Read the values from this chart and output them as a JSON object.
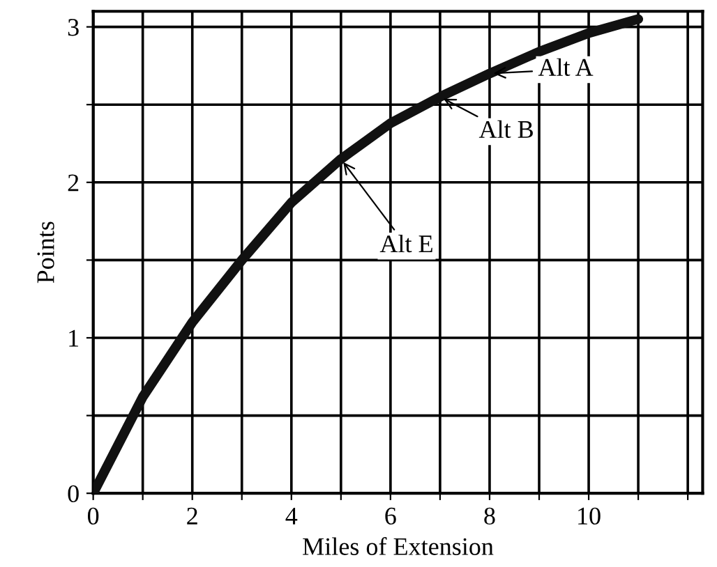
{
  "chart_data": {
    "type": "line",
    "xlabel": "Miles of Extension",
    "ylabel": "Points",
    "x": [
      0,
      1,
      2,
      3,
      4,
      5,
      6,
      7,
      8,
      9,
      10,
      11
    ],
    "series": [
      {
        "color": "#111111",
        "values": [
          0,
          0.62,
          1.1,
          1.5,
          1.87,
          2.15,
          2.38,
          2.55,
          2.7,
          2.84,
          2.96,
          3.05
        ]
      }
    ],
    "xlim": [
      0,
      12.3
    ],
    "ylim": [
      0,
      3.1
    ],
    "xticks": [
      0,
      {
        "value": 1,
        "label": null
      },
      2,
      {
        "value": 3,
        "label": null
      },
      4,
      {
        "value": 5,
        "label": null
      },
      6,
      {
        "value": 7,
        "label": null
      },
      8,
      {
        "value": 9,
        "label": null
      },
      10,
      {
        "value": 11,
        "label": null
      },
      {
        "value": 12,
        "label": null
      }
    ],
    "yticks": [
      0,
      {
        "value": 0.5,
        "label": null
      },
      1,
      {
        "value": 1.5,
        "label": null
      },
      2,
      {
        "value": 2.5,
        "label": null
      },
      3
    ],
    "grid": true,
    "marker": "none",
    "line_style": "solid",
    "annotations": [
      {
        "text": "Alt A",
        "x": 8,
        "y": 2.7
      },
      {
        "text": "Alt B",
        "x": 7,
        "y": 2.55
      },
      {
        "text": "Alt E",
        "x": 5,
        "y": 2.15
      }
    ]
  }
}
